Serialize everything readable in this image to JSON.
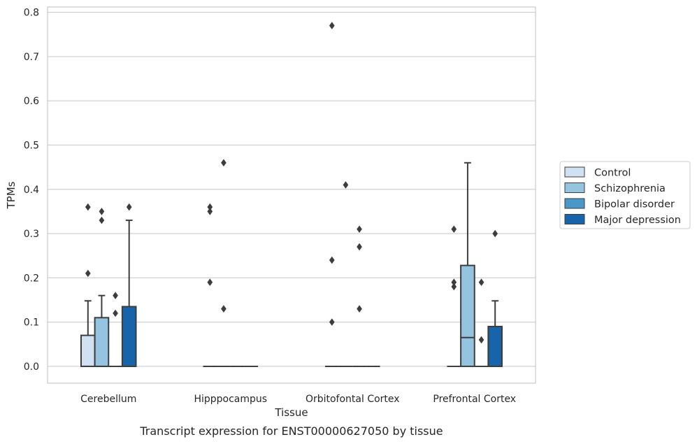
{
  "chart_data": {
    "type": "box",
    "caption": "Transcript expression for ENST00000627050 by tissue",
    "xlabel": "Tissue",
    "ylabel": "TPMs",
    "ylim": [
      -0.038,
      0.812
    ],
    "yticks": [
      0.0,
      0.1,
      0.2,
      0.3,
      0.4,
      0.5,
      0.6,
      0.7,
      0.8
    ],
    "ytick_labels": [
      "0.0",
      "0.1",
      "0.2",
      "0.3",
      "0.4",
      "0.5",
      "0.6",
      "0.7",
      "0.8"
    ],
    "grid": "horizontal",
    "legend_placement": "right, outside plot",
    "categories": [
      "Cerebellum",
      "Hipppocampus",
      "Orbitofontal Cortex",
      "Prefrontal Cortex"
    ],
    "series": [
      {
        "name": "Control",
        "color": "#d0e1f2",
        "boxes": [
          {
            "q1": 0.0,
            "median": 0.0,
            "q3": 0.07,
            "whisker_low": 0.0,
            "whisker_high": 0.148,
            "outliers": [
              0.21,
              0.36
            ]
          },
          {
            "q1": 0.0,
            "median": 0.0,
            "q3": 0.0,
            "whisker_low": 0.0,
            "whisker_high": 0.0,
            "outliers": [
              0.19,
              0.35,
              0.36
            ]
          },
          {
            "q1": 0.0,
            "median": 0.0,
            "q3": 0.0,
            "whisker_low": 0.0,
            "whisker_high": 0.0,
            "outliers": [
              0.1,
              0.24,
              0.77
            ]
          },
          {
            "q1": 0.0,
            "median": 0.0,
            "q3": 0.0,
            "whisker_low": 0.0,
            "whisker_high": 0.0,
            "outliers": [
              0.18,
              0.19,
              0.31
            ]
          }
        ]
      },
      {
        "name": "Schizophrenia",
        "color": "#94c4df",
        "boxes": [
          {
            "q1": 0.0,
            "median": 0.0,
            "q3": 0.11,
            "whisker_low": 0.0,
            "whisker_high": 0.16,
            "outliers": [
              0.33,
              0.35
            ]
          },
          {
            "q1": 0.0,
            "median": 0.0,
            "q3": 0.0,
            "whisker_low": 0.0,
            "whisker_high": 0.0,
            "outliers": [
              0.13,
              0.46
            ]
          },
          {
            "q1": 0.0,
            "median": 0.0,
            "q3": 0.0,
            "whisker_low": 0.0,
            "whisker_high": 0.0,
            "outliers": [
              0.41
            ]
          },
          {
            "q1": 0.0,
            "median": 0.065,
            "q3": 0.228,
            "whisker_low": 0.0,
            "whisker_high": 0.46,
            "outliers": []
          }
        ]
      },
      {
        "name": "Bipolar disorder",
        "color": "#4a98c9",
        "boxes": [
          {
            "q1": 0.0,
            "median": 0.0,
            "q3": 0.0,
            "whisker_low": 0.0,
            "whisker_high": 0.0,
            "outliers": [
              0.12,
              0.16
            ]
          },
          {
            "q1": 0.0,
            "median": 0.0,
            "q3": 0.0,
            "whisker_low": 0.0,
            "whisker_high": 0.0,
            "outliers": []
          },
          {
            "q1": 0.0,
            "median": 0.0,
            "q3": 0.0,
            "whisker_low": 0.0,
            "whisker_high": 0.0,
            "outliers": [
              0.13,
              0.27,
              0.31
            ]
          },
          {
            "q1": 0.0,
            "median": 0.0,
            "q3": 0.0,
            "whisker_low": 0.0,
            "whisker_high": 0.0,
            "outliers": [
              0.06,
              0.19
            ]
          }
        ]
      },
      {
        "name": "Major depression",
        "color": "#1764ab",
        "boxes": [
          {
            "q1": 0.0,
            "median": 0.0,
            "q3": 0.135,
            "whisker_low": 0.0,
            "whisker_high": 0.33,
            "outliers": [
              0.36
            ]
          },
          {
            "q1": 0.0,
            "median": 0.0,
            "q3": 0.0,
            "whisker_low": 0.0,
            "whisker_high": 0.0,
            "outliers": []
          },
          {
            "q1": 0.0,
            "median": 0.0,
            "q3": 0.0,
            "whisker_low": 0.0,
            "whisker_high": 0.0,
            "outliers": []
          },
          {
            "q1": 0.0,
            "median": 0.0,
            "q3": 0.09,
            "whisker_low": 0.0,
            "whisker_high": 0.148,
            "outliers": [
              0.3
            ]
          }
        ]
      }
    ]
  }
}
